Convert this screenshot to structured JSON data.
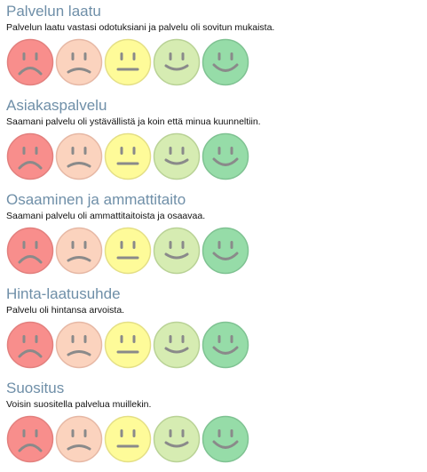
{
  "sections": [
    {
      "title": "Palvelun laatu",
      "description": "Palvelun laatu vastasi odotuksiani ja palvelu oli sovitun mukaista."
    },
    {
      "title": "Asiakaspalvelu",
      "description": "Saamani palvelu oli ystävällistä ja koin että minua kuunneltiin."
    },
    {
      "title": "Osaaminen ja ammattitaito",
      "description": "Saamani palvelu oli ammattitaitoista ja osaavaa."
    },
    {
      "title": "Hinta-laatusuhde",
      "description": "Palvelu oli hintansa arvoista."
    },
    {
      "title": "Suositus",
      "description": "Voisin suositella palvelua muillekin."
    }
  ],
  "faces": [
    {
      "icon": "very-sad-face-icon",
      "fill": "#f88e8c",
      "stroke": "#e2807e"
    },
    {
      "icon": "sad-face-icon",
      "fill": "#fbd3be",
      "stroke": "#e6b8a5"
    },
    {
      "icon": "neutral-face-icon",
      "fill": "#fefb99",
      "stroke": "#e4df86"
    },
    {
      "icon": "happy-face-icon",
      "fill": "#d6ecb2",
      "stroke": "#b9d296"
    },
    {
      "icon": "very-happy-face-icon",
      "fill": "#96dca8",
      "stroke": "#7fc292"
    }
  ],
  "feature_color": "#8a8a8a"
}
